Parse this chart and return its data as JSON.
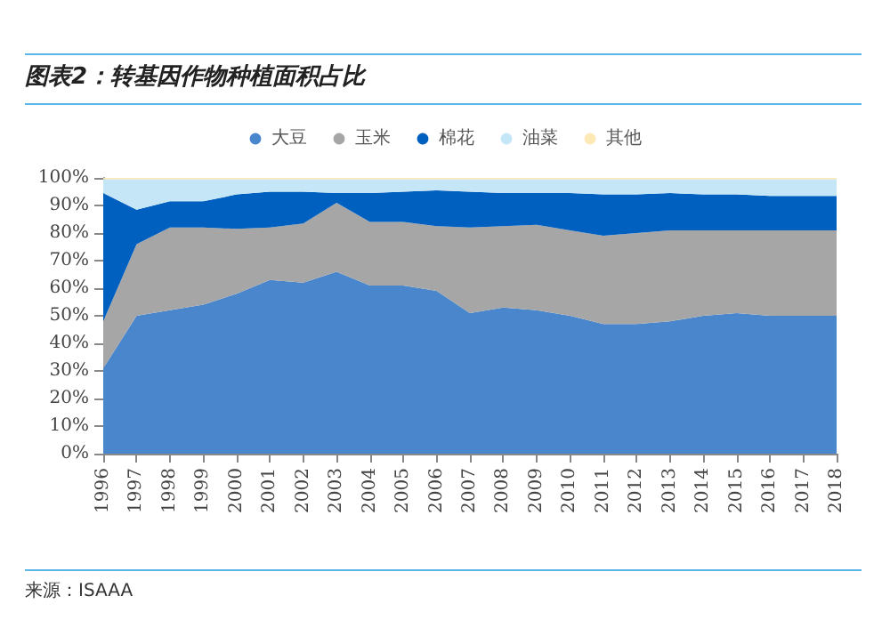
{
  "chart_data": {
    "type": "area",
    "stacked": true,
    "title": "图表2：转基因作物种植面积占比",
    "annotations": [
      "来源：ISAAA"
    ],
    "categories": [
      "1996",
      "1997",
      "1998",
      "1999",
      "2000",
      "2001",
      "2002",
      "2003",
      "2004",
      "2005",
      "2006",
      "2007",
      "2008",
      "2009",
      "2010",
      "2011",
      "2012",
      "2013",
      "2014",
      "2015",
      "2016",
      "2017",
      "2018"
    ],
    "series": [
      {
        "name": "大豆",
        "color": "#4a86cc",
        "values": [
          31,
          50,
          52,
          54,
          58,
          63,
          62,
          66,
          61,
          61,
          59,
          51,
          53,
          52,
          50,
          47,
          47,
          48,
          50,
          51,
          50,
          50,
          50
        ]
      },
      {
        "name": "玉米",
        "color": "#a6a6a6",
        "values": [
          17,
          26,
          30,
          28,
          23.5,
          19,
          21.5,
          25,
          23,
          23,
          23.5,
          31,
          29.5,
          31,
          31,
          32,
          33,
          33,
          31,
          30,
          31,
          31,
          31
        ]
      },
      {
        "name": "棉花",
        "color": "#0060c0",
        "values": [
          46.5,
          12.5,
          9.5,
          9.5,
          12.5,
          13,
          11.5,
          3.5,
          10.5,
          11,
          13,
          13,
          12,
          11.5,
          13.5,
          15,
          14,
          13.5,
          13,
          13,
          12.5,
          12.5,
          12.5
        ]
      },
      {
        "name": "油菜",
        "color": "#c5e6f7",
        "values": [
          5,
          11,
          8,
          8,
          5.5,
          4.5,
          4.5,
          5,
          5,
          4.5,
          4,
          4.5,
          5,
          5,
          5,
          5.5,
          5.5,
          5,
          5.5,
          5.5,
          6,
          6,
          6
        ]
      },
      {
        "name": "其他",
        "color": "#fde9b5",
        "values": [
          0.5,
          0.5,
          0.5,
          0.5,
          0.5,
          0.5,
          0.5,
          0.5,
          0.5,
          0.5,
          0.5,
          0.5,
          0.5,
          0.5,
          0.5,
          0.5,
          0.5,
          0.5,
          0.5,
          0.5,
          0.5,
          0.5,
          0.5
        ]
      }
    ],
    "ylim": [
      0,
      100
    ],
    "yticks": [
      {
        "value": 0,
        "label": "0%"
      },
      {
        "value": 10,
        "label": "10%"
      },
      {
        "value": 20,
        "label": "20%"
      },
      {
        "value": 30,
        "label": "30%"
      },
      {
        "value": 40,
        "label": "40%"
      },
      {
        "value": 50,
        "label": "50%"
      },
      {
        "value": 60,
        "label": "60%"
      },
      {
        "value": 70,
        "label": "70%"
      },
      {
        "value": 80,
        "label": "80%"
      },
      {
        "value": 90,
        "label": "90%"
      },
      {
        "value": 100,
        "label": "100%"
      }
    ],
    "grid": false,
    "legend": "top"
  }
}
